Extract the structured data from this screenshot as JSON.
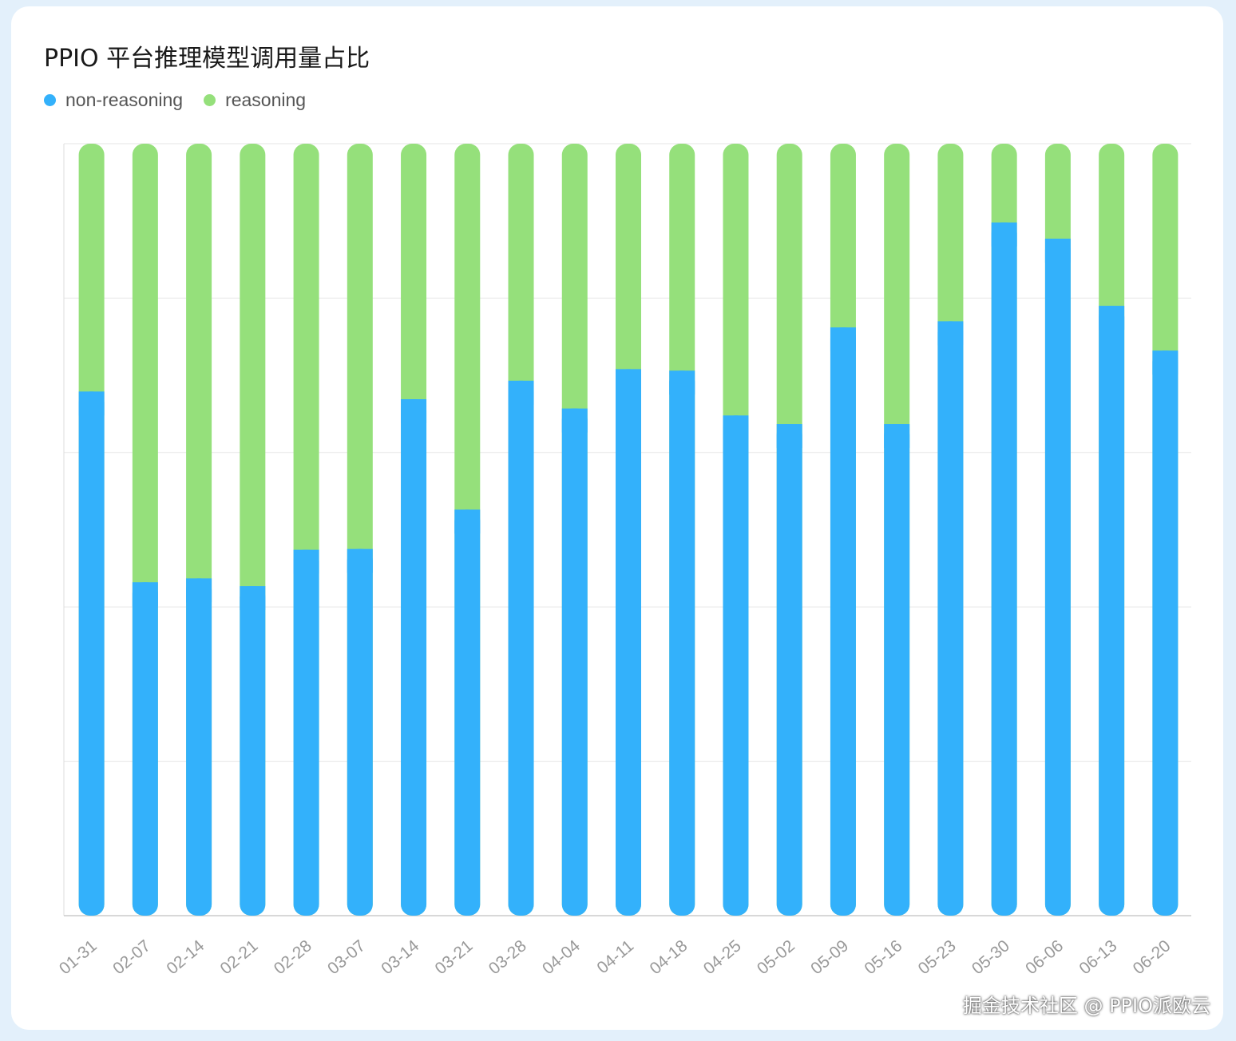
{
  "chart_data": {
    "type": "bar",
    "stacked": true,
    "title": "PPIO 平台推理模型调用量占比",
    "xlabel": "",
    "ylabel": "",
    "ylim": [
      0,
      100
    ],
    "grid": true,
    "legend_position": "top-left",
    "categories": [
      "01-31",
      "02-07",
      "02-14",
      "02-21",
      "02-28",
      "03-07",
      "03-14",
      "03-21",
      "03-28",
      "04-04",
      "04-11",
      "04-18",
      "04-25",
      "05-02",
      "05-09",
      "05-16",
      "05-23",
      "05-30",
      "06-06",
      "06-13",
      "06-20"
    ],
    "series": [
      {
        "name": "non-reasoning",
        "color": "#33b1fb",
        "values": [
          67.9,
          43.2,
          43.7,
          42.7,
          47.4,
          47.5,
          66.9,
          52.6,
          69.3,
          65.7,
          70.8,
          70.6,
          64.8,
          63.7,
          76.2,
          63.7,
          77.0,
          89.8,
          87.7,
          79.0,
          73.2
        ]
      },
      {
        "name": "reasoning",
        "color": "#95e07b",
        "values": [
          32.1,
          56.8,
          56.3,
          57.3,
          52.6,
          52.5,
          33.1,
          47.4,
          30.7,
          34.3,
          29.2,
          29.4,
          35.2,
          36.3,
          23.8,
          36.3,
          23.0,
          10.2,
          12.3,
          21.0,
          26.8
        ]
      }
    ]
  },
  "watermark": "掘金技术社区 @ PPIO派欧云"
}
